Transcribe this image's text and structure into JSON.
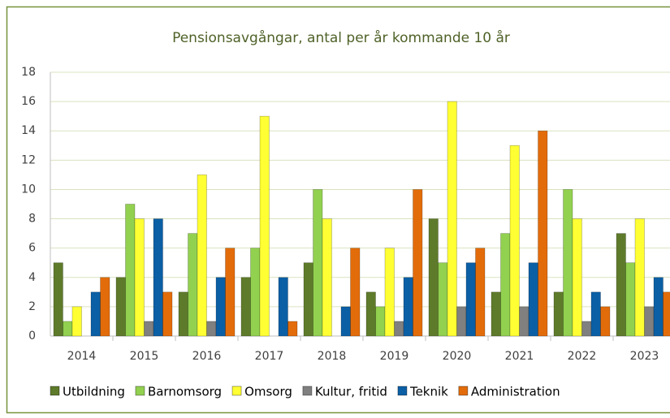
{
  "chart_data": {
    "type": "bar",
    "title": "Pensionsavgångar, antal per år kommande 10 år",
    "categories": [
      "2014",
      "2015",
      "2016",
      "2017",
      "2018",
      "2019",
      "2020",
      "2021",
      "2022",
      "2023"
    ],
    "series": [
      {
        "name": "Utbildning",
        "color": "#5e7b2b",
        "values": [
          5,
          4,
          3,
          4,
          5,
          3,
          8,
          3,
          3,
          7
        ]
      },
      {
        "name": "Barnomsorg",
        "color": "#92d050",
        "values": [
          1,
          9,
          7,
          6,
          10,
          2,
          5,
          7,
          10,
          5
        ]
      },
      {
        "name": "Omsorg",
        "color": "#ffff33",
        "values": [
          2,
          8,
          11,
          15,
          8,
          6,
          16,
          13,
          8,
          8
        ]
      },
      {
        "name": "Kultur, fritid",
        "color": "#808080",
        "values": [
          0,
          1,
          1,
          0,
          0,
          1,
          2,
          2,
          1,
          2
        ]
      },
      {
        "name": "Teknik",
        "color": "#0b5fa5",
        "values": [
          3,
          8,
          4,
          4,
          2,
          4,
          5,
          5,
          3,
          4
        ]
      },
      {
        "name": "Administration",
        "color": "#e36c0a",
        "values": [
          4,
          3,
          6,
          1,
          6,
          10,
          6,
          14,
          2,
          3
        ]
      }
    ],
    "ylim": [
      0,
      18
    ],
    "yticks": [
      0,
      2,
      4,
      6,
      8,
      10,
      12,
      14,
      16,
      18
    ],
    "grid": true,
    "legend": "bottom"
  }
}
